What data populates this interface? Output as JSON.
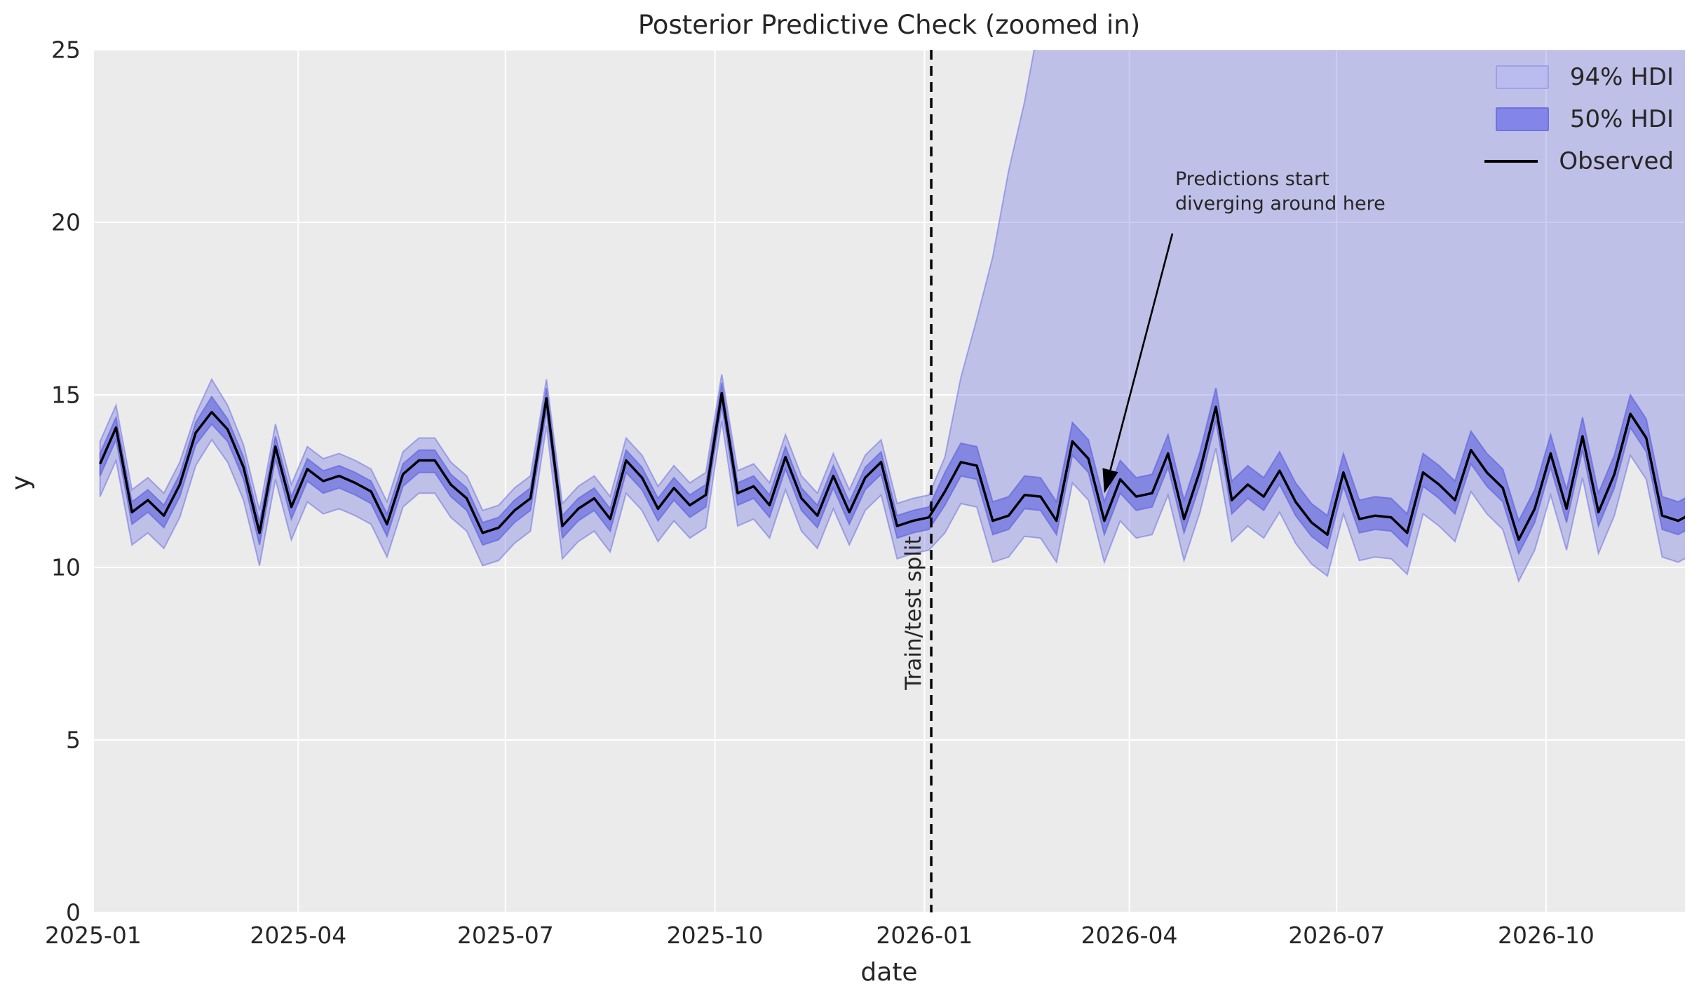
{
  "title": "Posterior Predictive Check (zoomed in)",
  "axes": {
    "xlabel": "date",
    "ylabel": "y",
    "x_tick_labels": [
      "2025-01",
      "2025-04",
      "2025-07",
      "2025-10",
      "2026-01",
      "2026-04",
      "2026-07",
      "2026-10"
    ],
    "y_tick_labels": [
      "0",
      "5",
      "10",
      "15",
      "20",
      "25"
    ]
  },
  "legend": {
    "items": [
      {
        "label": "94% HDI",
        "type": "patch",
        "fill": "#babcef",
        "edge": "#9fa1e6"
      },
      {
        "label": "50% HDI",
        "type": "patch",
        "fill": "#8385e8",
        "edge": "#7073da"
      },
      {
        "label": "Observed",
        "type": "line",
        "color": "#000000"
      }
    ]
  },
  "annotation": {
    "line1": "Predictions start",
    "line2": "diverging around here",
    "arrow_tip": {
      "date": "2026-03-21",
      "y": 12.15
    }
  },
  "split": {
    "label": "Train/test split",
    "date": "2026-01-04"
  },
  "chart_data": {
    "type": "line",
    "title": "Posterior Predictive Check (zoomed in)",
    "xlabel": "date",
    "ylabel": "y",
    "start_date": "2025-01-04",
    "freq_days": 7,
    "xlim": [
      "2025-01-01",
      "2026-12-01"
    ],
    "ylim": [
      0,
      25
    ],
    "x_ticks": [
      {
        "date": "2025-01-01",
        "label": "2025-01"
      },
      {
        "date": "2025-04-01",
        "label": "2025-04"
      },
      {
        "date": "2025-07-01",
        "label": "2025-07"
      },
      {
        "date": "2025-10-01",
        "label": "2025-10"
      },
      {
        "date": "2026-01-01",
        "label": "2026-01"
      },
      {
        "date": "2026-04-01",
        "label": "2026-04"
      },
      {
        "date": "2026-07-01",
        "label": "2026-07"
      },
      {
        "date": "2026-10-01",
        "label": "2026-10"
      }
    ],
    "y_ticks": [
      0,
      5,
      10,
      15,
      20,
      25
    ],
    "colors": {
      "plot_bg": "#ebebeb",
      "grid": "#ffffff",
      "hdi94_fill": "rgba(110,112,224,0.35)",
      "hdi94_edge": "rgba(110,112,224,0.55)",
      "hdi50_fill": "rgba(110,112,224,0.72)",
      "hdi50_edge": "rgba(96,99,216,0.65)",
      "observed": "#000000",
      "split_line": "#000000",
      "text": "#262626"
    },
    "legend_labels": [
      "94% HDI",
      "50% HDI",
      "Observed"
    ],
    "observed": [
      13.0,
      14.05,
      11.6,
      11.95,
      11.5,
      12.4,
      13.9,
      14.5,
      14.0,
      12.9,
      11.0,
      13.5,
      11.75,
      12.85,
      12.5,
      12.65,
      12.45,
      12.2,
      11.25,
      12.7,
      13.1,
      13.1,
      12.4,
      12.0,
      11.0,
      11.15,
      11.65,
      12.0,
      14.9,
      11.2,
      11.7,
      12.0,
      11.4,
      13.1,
      12.6,
      11.7,
      12.3,
      11.8,
      12.1,
      15.05,
      12.15,
      12.35,
      11.8,
      13.2,
      12.0,
      11.5,
      12.65,
      11.6,
      12.6,
      13.05,
      11.2,
      11.35,
      11.45,
      12.2,
      13.05,
      12.95,
      11.35,
      11.5,
      12.1,
      12.05,
      11.35,
      13.65,
      13.15,
      11.35,
      12.55,
      12.05,
      12.15,
      13.3,
      11.4,
      12.8,
      14.65,
      11.95,
      12.4,
      12.05,
      12.8,
      11.9,
      11.3,
      10.95,
      12.75,
      11.4,
      11.5,
      11.45,
      11.0,
      12.75,
      12.4,
      11.95,
      13.4,
      12.75,
      12.3,
      10.8,
      11.7,
      13.3,
      11.7,
      13.8,
      11.6,
      12.7,
      14.45,
      13.75,
      11.5,
      11.35,
      11.6
    ],
    "hdi50_lower": [
      12.65,
      13.7,
      11.25,
      11.6,
      11.15,
      12.05,
      13.55,
      14.15,
      13.65,
      12.55,
      10.65,
      13.15,
      11.4,
      12.5,
      12.15,
      12.3,
      12.1,
      11.85,
      10.9,
      12.35,
      12.75,
      12.75,
      12.05,
      11.65,
      10.65,
      10.8,
      11.3,
      11.65,
      14.55,
      10.85,
      11.35,
      11.65,
      11.05,
      12.75,
      12.25,
      11.35,
      11.95,
      11.45,
      11.75,
      14.7,
      11.8,
      12.0,
      11.45,
      12.85,
      11.65,
      11.15,
      12.3,
      11.25,
      12.25,
      12.7,
      10.85,
      11.0,
      11.1,
      11.8,
      12.65,
      12.55,
      10.95,
      11.1,
      11.7,
      11.65,
      10.95,
      13.25,
      12.75,
      10.95,
      12.15,
      11.65,
      11.75,
      12.9,
      11.0,
      12.4,
      14.25,
      11.55,
      12.0,
      11.65,
      12.4,
      11.5,
      10.9,
      10.55,
      12.35,
      11.0,
      11.1,
      11.05,
      10.6,
      12.35,
      12.0,
      11.55,
      13.0,
      12.35,
      11.9,
      10.4,
      11.3,
      12.9,
      11.3,
      13.4,
      11.2,
      12.3,
      14.05,
      13.35,
      11.1,
      10.95,
      11.2
    ],
    "hdi50_upper": [
      13.3,
      14.35,
      11.9,
      12.25,
      11.8,
      12.7,
      14.2,
      14.95,
      14.3,
      13.2,
      11.3,
      13.8,
      12.05,
      13.15,
      12.8,
      12.95,
      12.75,
      12.5,
      11.55,
      13.0,
      13.4,
      13.4,
      12.7,
      12.3,
      11.3,
      11.45,
      11.95,
      12.3,
      15.2,
      11.5,
      12.0,
      12.3,
      11.7,
      13.4,
      12.9,
      12.0,
      12.6,
      12.1,
      12.4,
      15.35,
      12.45,
      12.65,
      12.1,
      13.5,
      12.3,
      11.8,
      12.95,
      11.9,
      12.9,
      13.35,
      11.5,
      11.65,
      11.75,
      12.75,
      13.6,
      13.5,
      11.9,
      12.05,
      12.65,
      12.6,
      11.9,
      14.2,
      13.7,
      11.9,
      13.1,
      12.6,
      12.7,
      13.85,
      11.95,
      13.35,
      15.2,
      12.5,
      12.95,
      12.6,
      13.35,
      12.45,
      11.85,
      11.5,
      13.3,
      11.95,
      12.05,
      12.0,
      11.55,
      13.3,
      12.95,
      12.5,
      13.95,
      13.3,
      12.85,
      11.35,
      12.25,
      13.85,
      12.25,
      14.35,
      12.15,
      13.25,
      15.0,
      14.3,
      12.05,
      11.9,
      12.15
    ],
    "hdi94_lower": [
      12.05,
      13.1,
      10.65,
      11.0,
      10.55,
      11.45,
      12.95,
      13.7,
      13.05,
      11.95,
      10.05,
      12.55,
      10.8,
      11.9,
      11.55,
      11.7,
      11.5,
      11.25,
      10.3,
      11.75,
      12.15,
      12.15,
      11.45,
      11.05,
      10.05,
      10.2,
      10.7,
      11.05,
      14.1,
      10.25,
      10.75,
      11.05,
      10.45,
      12.15,
      11.65,
      10.75,
      11.35,
      10.85,
      11.15,
      14.25,
      11.2,
      11.4,
      10.85,
      12.25,
      11.05,
      10.55,
      11.7,
      10.65,
      11.65,
      12.1,
      10.25,
      10.4,
      10.5,
      11.0,
      11.85,
      11.75,
      10.15,
      10.3,
      10.9,
      10.85,
      10.15,
      12.45,
      11.95,
      10.15,
      11.35,
      10.85,
      10.95,
      12.1,
      10.2,
      11.6,
      13.45,
      10.75,
      11.2,
      10.85,
      11.6,
      10.7,
      10.1,
      9.75,
      11.55,
      10.2,
      10.3,
      10.25,
      9.8,
      11.55,
      11.2,
      10.75,
      12.2,
      11.55,
      11.1,
      9.6,
      10.5,
      12.1,
      10.5,
      12.6,
      10.4,
      11.5,
      13.25,
      12.55,
      10.3,
      10.15,
      10.4
    ],
    "hdi94_upper": [
      13.65,
      14.7,
      12.25,
      12.6,
      12.15,
      13.05,
      14.45,
      15.45,
      14.7,
      13.55,
      11.65,
      14.15,
      12.4,
      13.5,
      13.15,
      13.3,
      13.1,
      12.85,
      11.9,
      13.35,
      13.75,
      13.75,
      13.05,
      12.65,
      11.65,
      11.8,
      12.3,
      12.65,
      15.45,
      11.85,
      12.35,
      12.65,
      12.05,
      13.75,
      13.25,
      12.35,
      12.95,
      12.45,
      12.75,
      15.6,
      12.8,
      13.0,
      12.45,
      13.85,
      12.65,
      12.15,
      13.3,
      12.25,
      13.25,
      13.7,
      11.85,
      12.0,
      12.1,
      13.2,
      15.5,
      17.2,
      19.0,
      21.5,
      23.5,
      26.0,
      27.5,
      27.5,
      27.5,
      27.5,
      27.5,
      27.5,
      27.5,
      27.5,
      27.5,
      27.5,
      27.5,
      27.5,
      27.5,
      27.5,
      27.5,
      27.5,
      27.5,
      27.5,
      27.5,
      27.5,
      27.5,
      27.5,
      27.5,
      27.5,
      27.5,
      27.5,
      27.5,
      27.5,
      27.5,
      27.5,
      27.5,
      27.5,
      27.5,
      27.5,
      27.5,
      27.5,
      27.5,
      27.5,
      27.5,
      27.5,
      27.5
    ]
  }
}
